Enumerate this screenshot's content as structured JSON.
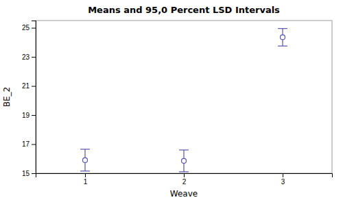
{
  "chart_data": {
    "type": "errorbar",
    "title": "Means and 95,0 Percent LSD Intervals",
    "xlabel": "Weave",
    "ylabel": "BE_2",
    "categories": [
      "1",
      "2",
      "3"
    ],
    "values": [
      15.9,
      15.85,
      24.35
    ],
    "error_upper": [
      0.75,
      0.75,
      0.6
    ],
    "error_lower": [
      0.75,
      0.75,
      0.6
    ],
    "ylim": [
      15,
      25.5
    ],
    "yticks": [
      15,
      17,
      19,
      21,
      23,
      25
    ],
    "color": "#5555aa",
    "marker": "circle",
    "grid": false
  }
}
